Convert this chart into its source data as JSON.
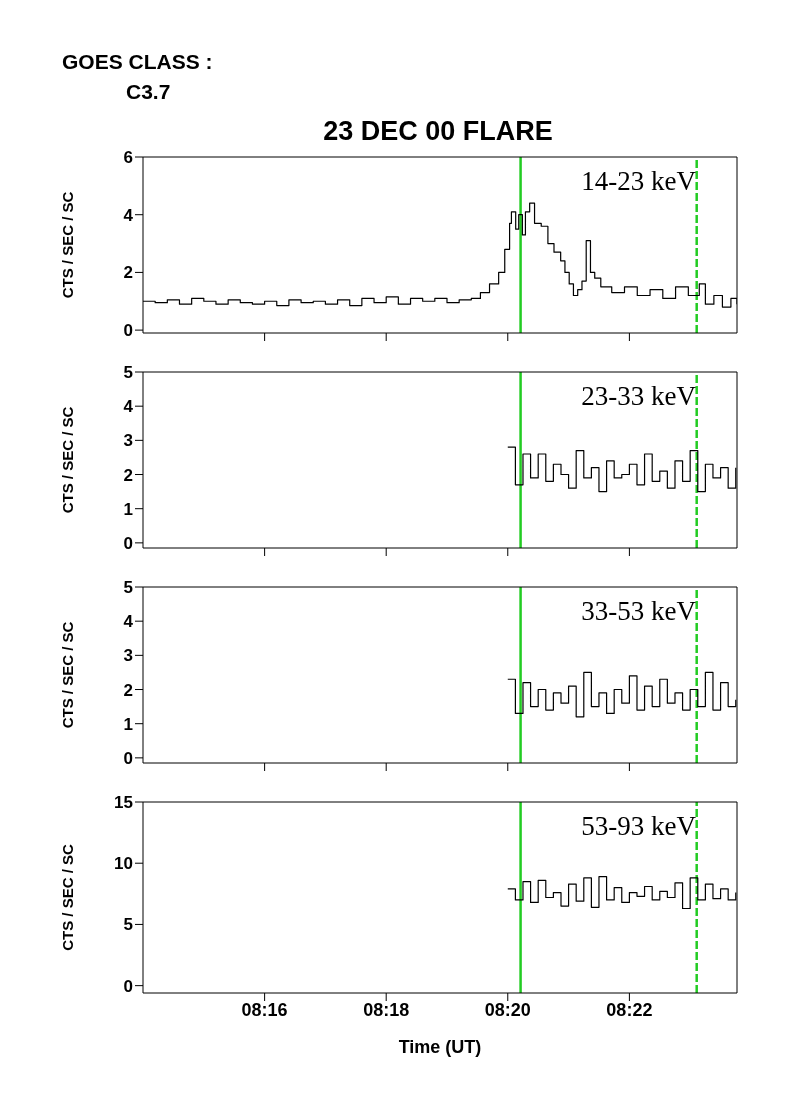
{
  "chart_data": [
    {
      "type": "step",
      "title": "23 DEC 00 FLARE",
      "annotations": [
        "GOES CLASS :",
        "C3.7"
      ],
      "ylabel": "CTS / SEC / SC",
      "xlim": [
        8.23333,
        8.39617
      ],
      "xticks": [
        {
          "value": 8.26667,
          "label": null
        },
        {
          "value": 8.3,
          "label": null
        },
        {
          "value": 8.33333,
          "label": null
        },
        {
          "value": 8.36667,
          "label": null
        }
      ],
      "ylim": [
        -0.1,
        6
      ],
      "yticks": [
        0,
        2,
        4,
        6
      ],
      "tick_labels": "y",
      "legend": false,
      "ref_lines": [
        {
          "axis": "x",
          "value": 8.33684,
          "color": "#22cc22",
          "line_style": "solid"
        },
        {
          "axis": "x",
          "value": 8.38512,
          "color": "#22cc22",
          "line_style": "dashed"
        }
      ],
      "series": [
        {
          "name": "14-23 keV",
          "color": "#000000",
          "x": [
            8.23333,
            8.23667,
            8.24,
            8.24333,
            8.24667,
            8.25,
            8.25333,
            8.25667,
            8.26,
            8.26333,
            8.26667,
            8.27,
            8.27333,
            8.27667,
            8.28,
            8.28333,
            8.28667,
            8.29,
            8.29333,
            8.29667,
            8.3,
            8.30333,
            8.30667,
            8.31,
            8.31333,
            8.31667,
            8.32,
            8.32333,
            8.32583,
            8.32833,
            8.33083,
            8.3325,
            8.33383,
            8.33433,
            8.3355,
            8.33633,
            8.33733,
            8.33817,
            8.33933,
            8.34067,
            8.3425,
            8.34433,
            8.346,
            8.34783,
            8.349,
            8.35017,
            8.35133,
            8.3525,
            8.35367,
            8.35483,
            8.356,
            8.35717,
            8.35883,
            8.36183,
            8.36533,
            8.36883,
            8.37233,
            8.37583,
            8.37933,
            8.38283,
            8.38583,
            8.3875,
            8.38983,
            8.39217,
            8.3945,
            8.39617
          ],
          "values": [
            1.0,
            0.95,
            1.05,
            0.9,
            1.1,
            1.0,
            0.9,
            1.05,
            0.95,
            0.9,
            1.0,
            0.85,
            1.05,
            0.95,
            1.0,
            0.9,
            1.05,
            0.85,
            1.1,
            0.95,
            1.15,
            0.9,
            1.1,
            1.0,
            1.1,
            0.95,
            1.05,
            1.1,
            1.3,
            1.6,
            2.0,
            2.8,
            3.7,
            4.1,
            3.5,
            4.0,
            3.3,
            4.1,
            4.4,
            3.7,
            3.6,
            3.0,
            2.7,
            2.4,
            2.0,
            1.6,
            1.2,
            1.4,
            1.7,
            3.1,
            2.0,
            1.8,
            1.5,
            1.3,
            1.5,
            1.2,
            1.4,
            1.1,
            1.5,
            1.2,
            1.6,
            0.9,
            1.2,
            0.8,
            1.1,
            0.9
          ]
        }
      ]
    },
    {
      "type": "step",
      "ylabel": "CTS / SEC / SC",
      "xlim": [
        8.23333,
        8.39617
      ],
      "xticks": [
        {
          "value": 8.26667,
          "label": null
        },
        {
          "value": 8.3,
          "label": null
        },
        {
          "value": 8.33333,
          "label": null
        },
        {
          "value": 8.36667,
          "label": null
        }
      ],
      "ylim": [
        -0.15,
        5
      ],
      "yticks": [
        0,
        1,
        2,
        3,
        4,
        5
      ],
      "tick_labels": "y",
      "legend": false,
      "ref_lines": [
        {
          "axis": "x",
          "value": 8.33684,
          "color": "#22cc22",
          "line_style": "solid"
        },
        {
          "axis": "x",
          "value": 8.38512,
          "color": "#22cc22",
          "line_style": "dashed"
        }
      ],
      "series": [
        {
          "name": "23-33 keV",
          "color": "#000000",
          "x": [
            8.33333,
            8.33542,
            8.3375,
            8.33958,
            8.34167,
            8.34375,
            8.34583,
            8.34792,
            8.35,
            8.35208,
            8.35417,
            8.35625,
            8.35833,
            8.36042,
            8.3625,
            8.36458,
            8.36667,
            8.36875,
            8.37083,
            8.37292,
            8.375,
            8.37708,
            8.37917,
            8.38125,
            8.38333,
            8.38542,
            8.3875,
            8.38958,
            8.39167,
            8.39375,
            8.39583
          ],
          "values": [
            2.8,
            1.7,
            2.6,
            1.9,
            2.6,
            1.8,
            2.3,
            2.0,
            1.6,
            2.7,
            1.9,
            2.2,
            1.5,
            2.4,
            1.9,
            2.0,
            2.3,
            1.7,
            2.6,
            1.8,
            2.1,
            1.6,
            2.4,
            1.8,
            2.7,
            1.5,
            2.3,
            1.9,
            2.2,
            1.6,
            2.2
          ]
        }
      ]
    },
    {
      "type": "step",
      "ylabel": "CTS / SEC / SC",
      "xlim": [
        8.23333,
        8.39617
      ],
      "xticks": [
        {
          "value": 8.26667,
          "label": null
        },
        {
          "value": 8.3,
          "label": null
        },
        {
          "value": 8.33333,
          "label": null
        },
        {
          "value": 8.36667,
          "label": null
        }
      ],
      "ylim": [
        -0.15,
        5
      ],
      "yticks": [
        0,
        1,
        2,
        3,
        4,
        5
      ],
      "tick_labels": "y",
      "legend": false,
      "ref_lines": [
        {
          "axis": "x",
          "value": 8.33684,
          "color": "#22cc22",
          "line_style": "solid"
        },
        {
          "axis": "x",
          "value": 8.38512,
          "color": "#22cc22",
          "line_style": "dashed"
        }
      ],
      "series": [
        {
          "name": "33-53 keV",
          "color": "#000000",
          "x": [
            8.33333,
            8.33542,
            8.3375,
            8.33958,
            8.34167,
            8.34375,
            8.34583,
            8.34792,
            8.35,
            8.35208,
            8.35417,
            8.35625,
            8.35833,
            8.36042,
            8.3625,
            8.36458,
            8.36667,
            8.36875,
            8.37083,
            8.37292,
            8.375,
            8.37708,
            8.37917,
            8.38125,
            8.38333,
            8.38542,
            8.3875,
            8.38958,
            8.39167,
            8.39375,
            8.39583
          ],
          "values": [
            2.3,
            1.3,
            2.2,
            1.5,
            2.0,
            1.4,
            1.9,
            1.6,
            2.1,
            1.2,
            2.5,
            1.5,
            1.9,
            1.3,
            2.0,
            1.6,
            2.4,
            1.4,
            2.1,
            1.5,
            2.3,
            1.6,
            1.9,
            1.4,
            2.0,
            1.5,
            2.5,
            1.4,
            2.2,
            1.5,
            1.7
          ]
        }
      ]
    },
    {
      "type": "step",
      "ylabel": "CTS / SEC / SC",
      "xlabel": "Time (UT)",
      "xlim": [
        8.23333,
        8.39617
      ],
      "xticks": [
        {
          "value": 8.26667,
          "label": "08:16"
        },
        {
          "value": 8.3,
          "label": "08:18"
        },
        {
          "value": 8.33333,
          "label": "08:20"
        },
        {
          "value": 8.36667,
          "label": "08:22"
        }
      ],
      "ylim": [
        -0.6,
        15
      ],
      "yticks": [
        0,
        5,
        10,
        15
      ],
      "legend": false,
      "ref_lines": [
        {
          "axis": "x",
          "value": 8.33684,
          "color": "#22cc22",
          "line_style": "solid"
        },
        {
          "axis": "x",
          "value": 8.38512,
          "color": "#22cc22",
          "line_style": "dashed"
        }
      ],
      "series": [
        {
          "name": "53-93 keV",
          "color": "#000000",
          "x": [
            8.33333,
            8.33542,
            8.3375,
            8.33958,
            8.34167,
            8.34375,
            8.34583,
            8.34792,
            8.35,
            8.35208,
            8.35417,
            8.35625,
            8.35833,
            8.36042,
            8.3625,
            8.36458,
            8.36667,
            8.36875,
            8.37083,
            8.37292,
            8.375,
            8.37708,
            8.37917,
            8.38125,
            8.38333,
            8.38542,
            8.3875,
            8.38958,
            8.39167,
            8.39375,
            8.39583
          ],
          "values": [
            7.9,
            7.0,
            8.5,
            6.8,
            8.6,
            7.2,
            7.6,
            6.5,
            8.3,
            6.9,
            8.8,
            6.4,
            8.9,
            7.0,
            8.0,
            6.8,
            7.6,
            7.3,
            8.1,
            7.0,
            7.7,
            7.2,
            8.4,
            6.3,
            8.8,
            7.0,
            8.3,
            7.1,
            7.9,
            7.0,
            7.6
          ]
        }
      ]
    }
  ]
}
